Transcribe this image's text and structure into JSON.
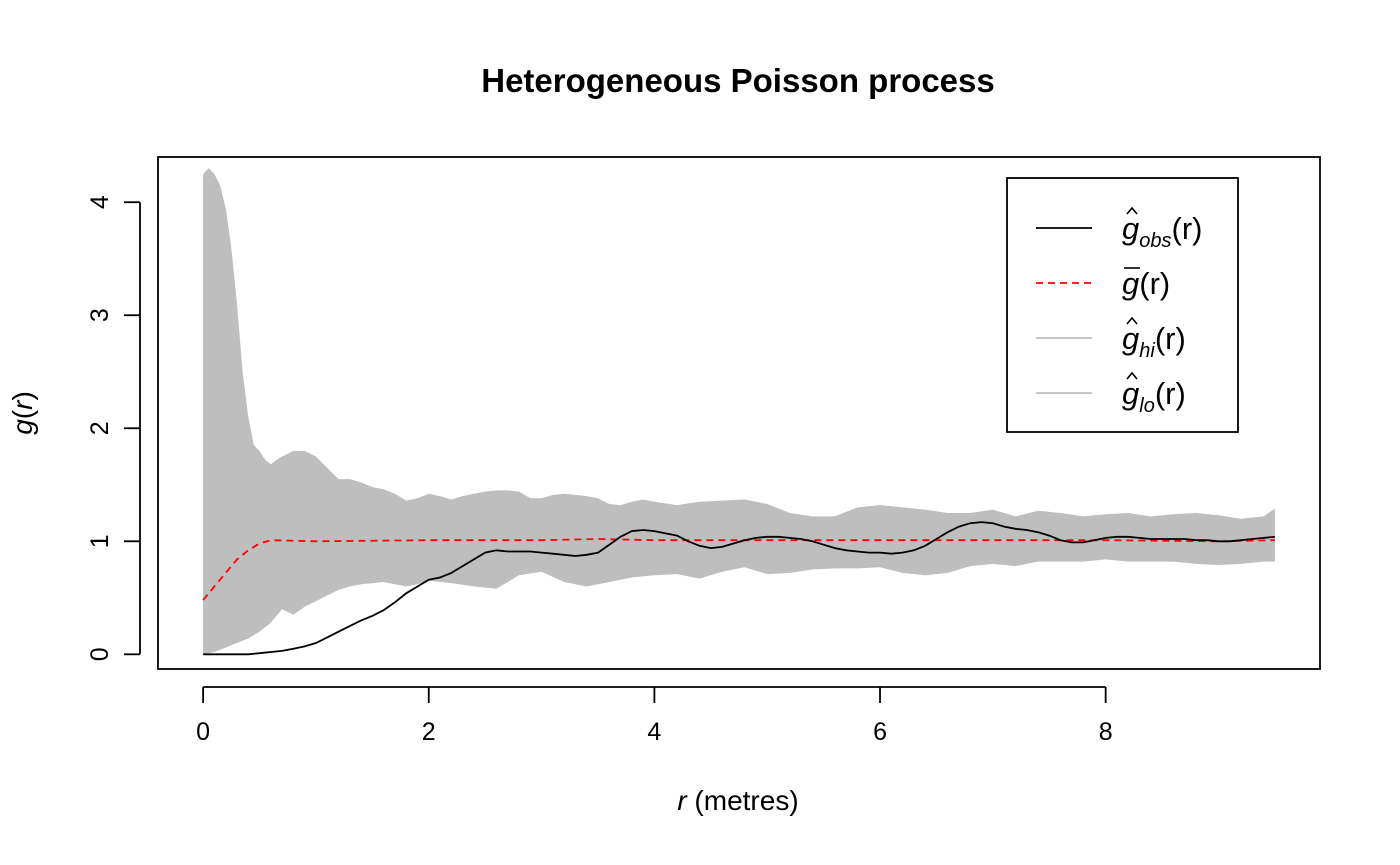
{
  "chart_data": {
    "type": "line",
    "title": "Heterogeneous Poisson process",
    "xlabel": {
      "var": "r",
      "rest": " (metres)"
    },
    "ylabel": {
      "fn": "g",
      "open": "(",
      "var": "r",
      "close": ")"
    },
    "xlim": [
      -0.4,
      9.9
    ],
    "ylim": [
      -0.13,
      4.4
    ],
    "x_ticks": [
      0,
      2,
      4,
      6,
      8
    ],
    "y_ticks": [
      0,
      1,
      2,
      3,
      4
    ],
    "grid": false,
    "legend_position": "top-right",
    "colors": {
      "obs": "#000000",
      "mean": "#ff0000",
      "envelope": "#bebebe"
    },
    "legend": [
      {
        "id": "obs",
        "base": "g",
        "hat": true,
        "bar": false,
        "sub": "obs",
        "arg": "(r)",
        "style": "solid",
        "color": "#000000"
      },
      {
        "id": "mean",
        "base": "g",
        "hat": false,
        "bar": true,
        "sub": "",
        "arg": "(r)",
        "style": "dashed",
        "color": "#ff0000"
      },
      {
        "id": "hi",
        "base": "g",
        "hat": true,
        "bar": false,
        "sub": "hi",
        "arg": "(r)",
        "style": "solid",
        "color": "#bebebe"
      },
      {
        "id": "lo",
        "base": "g",
        "hat": true,
        "bar": false,
        "sub": "lo",
        "arg": "(r)",
        "style": "solid",
        "color": "#bebebe"
      }
    ],
    "series": [
      {
        "id": "obs",
        "x": [
          0,
          0.2,
          0.4,
          0.5,
          0.6,
          0.7,
          0.8,
          0.9,
          1.0,
          1.1,
          1.2,
          1.3,
          1.4,
          1.5,
          1.6,
          1.7,
          1.8,
          1.9,
          2.0,
          2.1,
          2.2,
          2.3,
          2.4,
          2.5,
          2.6,
          2.7,
          2.8,
          2.9,
          3.0,
          3.1,
          3.2,
          3.3,
          3.4,
          3.5,
          3.6,
          3.7,
          3.8,
          3.9,
          4.0,
          4.1,
          4.2,
          4.3,
          4.4,
          4.5,
          4.6,
          4.7,
          4.8,
          4.9,
          5.0,
          5.1,
          5.2,
          5.3,
          5.4,
          5.5,
          5.6,
          5.7,
          5.8,
          5.9,
          6.0,
          6.1,
          6.2,
          6.3,
          6.4,
          6.5,
          6.6,
          6.7,
          6.8,
          6.9,
          7.0,
          7.1,
          7.2,
          7.3,
          7.4,
          7.5,
          7.6,
          7.7,
          7.8,
          7.9,
          8.0,
          8.1,
          8.2,
          8.3,
          8.4,
          8.5,
          8.6,
          8.7,
          8.8,
          8.9,
          9.0,
          9.1,
          9.2,
          9.3,
          9.4,
          9.5
        ],
        "y": [
          0,
          0,
          0,
          0.01,
          0.02,
          0.03,
          0.05,
          0.07,
          0.1,
          0.15,
          0.2,
          0.25,
          0.3,
          0.34,
          0.39,
          0.46,
          0.54,
          0.6,
          0.66,
          0.68,
          0.72,
          0.78,
          0.84,
          0.9,
          0.92,
          0.91,
          0.91,
          0.91,
          0.9,
          0.89,
          0.88,
          0.87,
          0.88,
          0.9,
          0.97,
          1.04,
          1.09,
          1.1,
          1.09,
          1.07,
          1.05,
          1.0,
          0.96,
          0.94,
          0.95,
          0.98,
          1.01,
          1.03,
          1.04,
          1.04,
          1.03,
          1.02,
          1.0,
          0.97,
          0.94,
          0.92,
          0.91,
          0.9,
          0.9,
          0.89,
          0.9,
          0.92,
          0.96,
          1.02,
          1.08,
          1.13,
          1.16,
          1.17,
          1.16,
          1.13,
          1.11,
          1.1,
          1.08,
          1.05,
          1.01,
          0.99,
          0.99,
          1.01,
          1.03,
          1.04,
          1.04,
          1.03,
          1.02,
          1.02,
          1.02,
          1.02,
          1.01,
          1.01,
          1.0,
          1.0,
          1.01,
          1.02,
          1.03,
          1.04
        ]
      },
      {
        "id": "mean",
        "x": [
          0,
          0.1,
          0.2,
          0.3,
          0.4,
          0.5,
          0.6,
          1,
          2,
          3,
          3.5,
          4,
          5,
          6,
          7,
          8,
          9,
          9.5
        ],
        "y": [
          0.48,
          0.6,
          0.72,
          0.84,
          0.92,
          0.98,
          1.01,
          1.0,
          1.01,
          1.01,
          1.02,
          1.01,
          1.01,
          1.01,
          1.01,
          1.01,
          1.0,
          1.01
        ]
      },
      {
        "id": "hi",
        "x": [
          0,
          0.05,
          0.1,
          0.15,
          0.2,
          0.25,
          0.3,
          0.35,
          0.4,
          0.45,
          0.5,
          0.55,
          0.6,
          0.65,
          0.7,
          0.8,
          0.9,
          1.0,
          1.1,
          1.2,
          1.3,
          1.4,
          1.5,
          1.6,
          1.7,
          1.8,
          1.9,
          2.0,
          2.1,
          2.2,
          2.3,
          2.4,
          2.5,
          2.6,
          2.7,
          2.8,
          2.9,
          3.0,
          3.1,
          3.2,
          3.3,
          3.4,
          3.5,
          3.6,
          3.7,
          3.8,
          3.9,
          4.0,
          4.2,
          4.4,
          4.6,
          4.8,
          5.0,
          5.2,
          5.4,
          5.6,
          5.8,
          6.0,
          6.2,
          6.4,
          6.6,
          6.8,
          7.0,
          7.2,
          7.4,
          7.6,
          7.8,
          8.0,
          8.2,
          8.4,
          8.6,
          8.8,
          9.0,
          9.2,
          9.4,
          9.5
        ],
        "y": [
          4.25,
          4.3,
          4.25,
          4.15,
          3.95,
          3.6,
          3.1,
          2.5,
          2.1,
          1.85,
          1.8,
          1.72,
          1.68,
          1.72,
          1.75,
          1.8,
          1.8,
          1.75,
          1.65,
          1.55,
          1.55,
          1.52,
          1.48,
          1.46,
          1.42,
          1.36,
          1.38,
          1.42,
          1.4,
          1.37,
          1.4,
          1.42,
          1.44,
          1.45,
          1.45,
          1.44,
          1.38,
          1.38,
          1.41,
          1.42,
          1.41,
          1.4,
          1.38,
          1.33,
          1.32,
          1.35,
          1.37,
          1.35,
          1.32,
          1.35,
          1.36,
          1.37,
          1.33,
          1.25,
          1.22,
          1.22,
          1.3,
          1.32,
          1.3,
          1.28,
          1.25,
          1.25,
          1.28,
          1.22,
          1.27,
          1.25,
          1.22,
          1.24,
          1.25,
          1.22,
          1.24,
          1.25,
          1.23,
          1.2,
          1.22,
          1.29
        ]
      },
      {
        "id": "lo",
        "x": [
          0,
          0.1,
          0.2,
          0.3,
          0.4,
          0.5,
          0.6,
          0.7,
          0.8,
          0.9,
          1.0,
          1.1,
          1.2,
          1.3,
          1.4,
          1.5,
          1.6,
          1.7,
          1.8,
          1.9,
          2.0,
          2.2,
          2.4,
          2.6,
          2.8,
          3.0,
          3.2,
          3.4,
          3.6,
          3.8,
          4.0,
          4.2,
          4.4,
          4.6,
          4.8,
          5.0,
          5.2,
          5.4,
          5.6,
          5.8,
          6.0,
          6.2,
          6.4,
          6.6,
          6.8,
          7.0,
          7.2,
          7.4,
          7.6,
          7.8,
          8.0,
          8.2,
          8.4,
          8.6,
          8.8,
          9.0,
          9.2,
          9.4,
          9.5
        ],
        "y": [
          0,
          0.02,
          0.06,
          0.1,
          0.14,
          0.2,
          0.28,
          0.4,
          0.35,
          0.42,
          0.47,
          0.52,
          0.57,
          0.6,
          0.62,
          0.63,
          0.64,
          0.62,
          0.6,
          0.62,
          0.65,
          0.63,
          0.6,
          0.58,
          0.7,
          0.73,
          0.64,
          0.6,
          0.64,
          0.68,
          0.7,
          0.71,
          0.67,
          0.73,
          0.77,
          0.71,
          0.72,
          0.75,
          0.76,
          0.76,
          0.77,
          0.72,
          0.7,
          0.72,
          0.78,
          0.8,
          0.78,
          0.82,
          0.82,
          0.82,
          0.84,
          0.82,
          0.82,
          0.82,
          0.8,
          0.79,
          0.8,
          0.82,
          0.82
        ]
      }
    ]
  }
}
